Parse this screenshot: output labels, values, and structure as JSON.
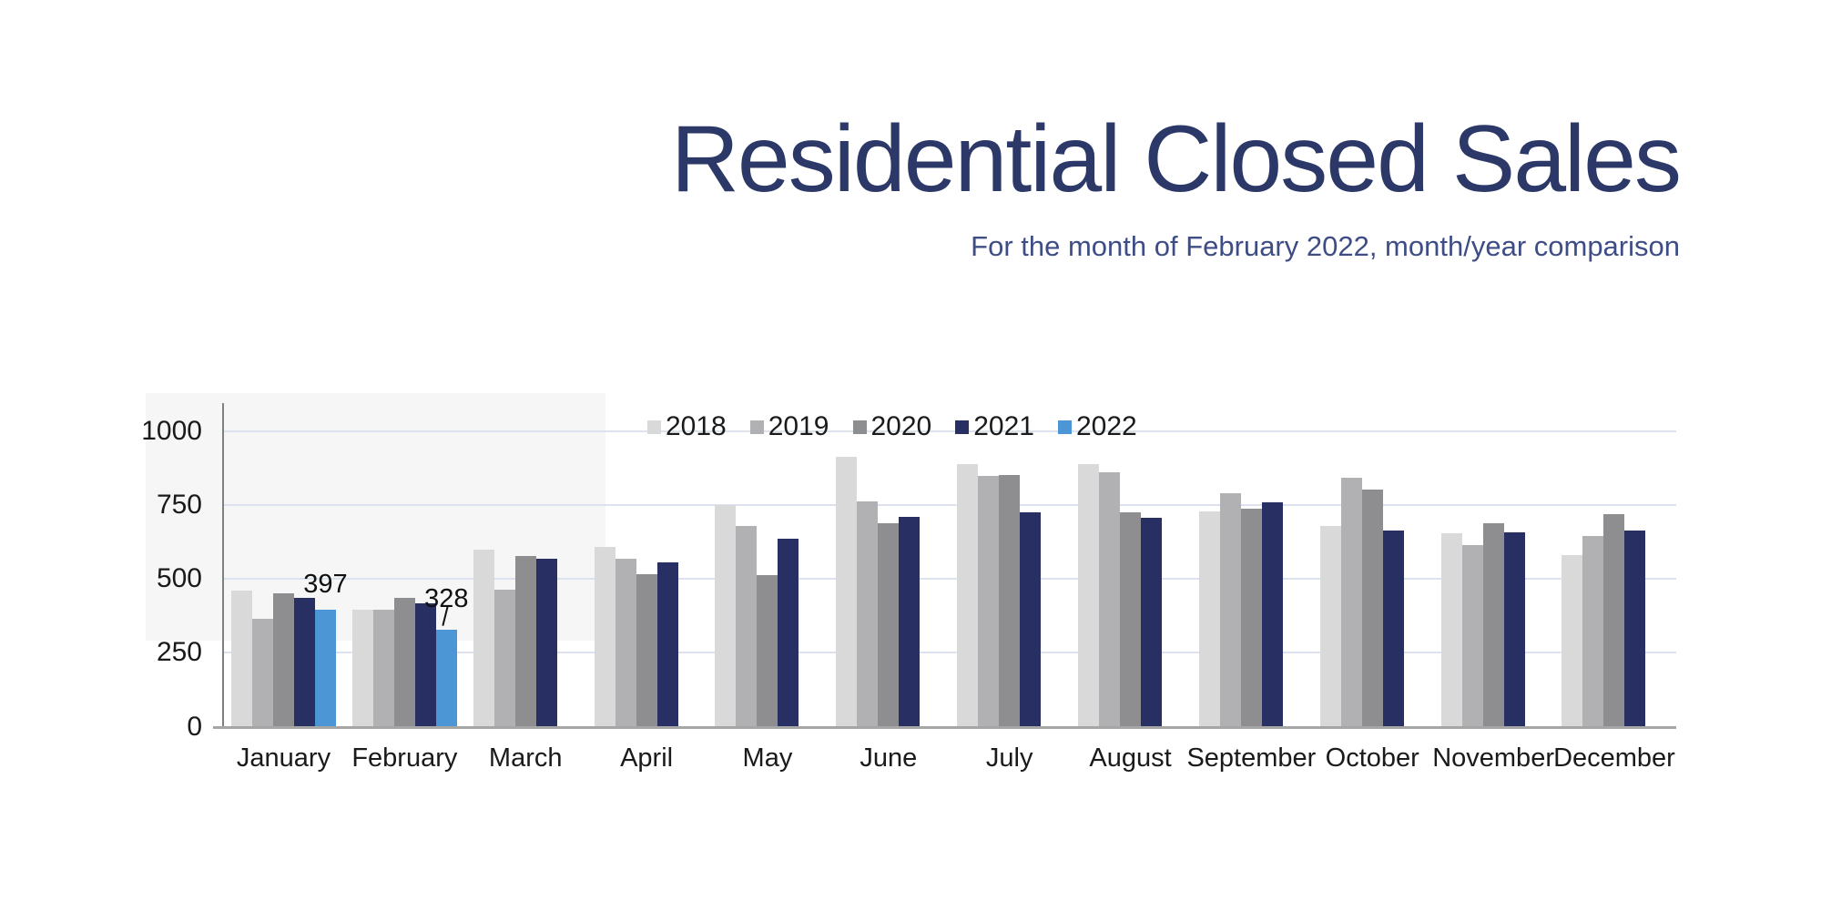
{
  "header": {
    "title": "Residential Closed Sales",
    "subtitle": "For the month of February 2022, month/year comparison",
    "title_color": "#2c3968",
    "subtitle_color": "#3e4d85"
  },
  "chart_data": {
    "type": "bar",
    "title": "Residential Closed Sales",
    "subtitle": "For the month of February 2022, month/year comparison",
    "categories": [
      "January",
      "February",
      "March",
      "April",
      "May",
      "June",
      "July",
      "August",
      "September",
      "October",
      "November",
      "December"
    ],
    "series": [
      {
        "name": "2018",
        "color": "#d9d9d9",
        "values": [
          460,
          396,
          599,
          608,
          750,
          914,
          890,
          890,
          728,
          678,
          655,
          582
        ]
      },
      {
        "name": "2019",
        "color": "#b1b1b3",
        "values": [
          366,
          397,
          464,
          570,
          679,
          762,
          848,
          862,
          790,
          842,
          614,
          646
        ]
      },
      {
        "name": "2020",
        "color": "#8e8e90",
        "values": [
          450,
          436,
          577,
          515,
          513,
          688,
          852,
          725,
          738,
          803,
          688,
          719
        ]
      },
      {
        "name": "2021",
        "color": "#283063",
        "values": [
          437,
          417,
          568,
          557,
          637,
          710,
          727,
          708,
          760,
          665,
          658,
          665
        ]
      },
      {
        "name": "2022",
        "color": "#4d96d5",
        "values": [
          397,
          328,
          null,
          null,
          null,
          null,
          null,
          null,
          null,
          null,
          null,
          null
        ]
      }
    ],
    "annotations": [
      {
        "series": "2022",
        "category": "January",
        "text": "397",
        "leader": false
      },
      {
        "series": "2022",
        "category": "February",
        "text": "328",
        "leader": true
      }
    ],
    "y_axis": {
      "ticks": [
        0,
        250,
        500,
        750,
        1000
      ],
      "min": 0,
      "max": 1000
    },
    "x_axis_labels": [
      "January",
      "February",
      "March",
      "April",
      "May",
      "June",
      "July",
      "August",
      "September",
      "October",
      "November",
      "December"
    ],
    "legend": {
      "position": "top-center",
      "entries": [
        "2018",
        "2019",
        "2020",
        "2021",
        "2022"
      ]
    },
    "grid": "horizontal",
    "gridline_color": "#dce3ef",
    "axis_line_color": "#808080",
    "baseline_color": "#a6a6a6",
    "text_color": "#1a1a1a"
  }
}
